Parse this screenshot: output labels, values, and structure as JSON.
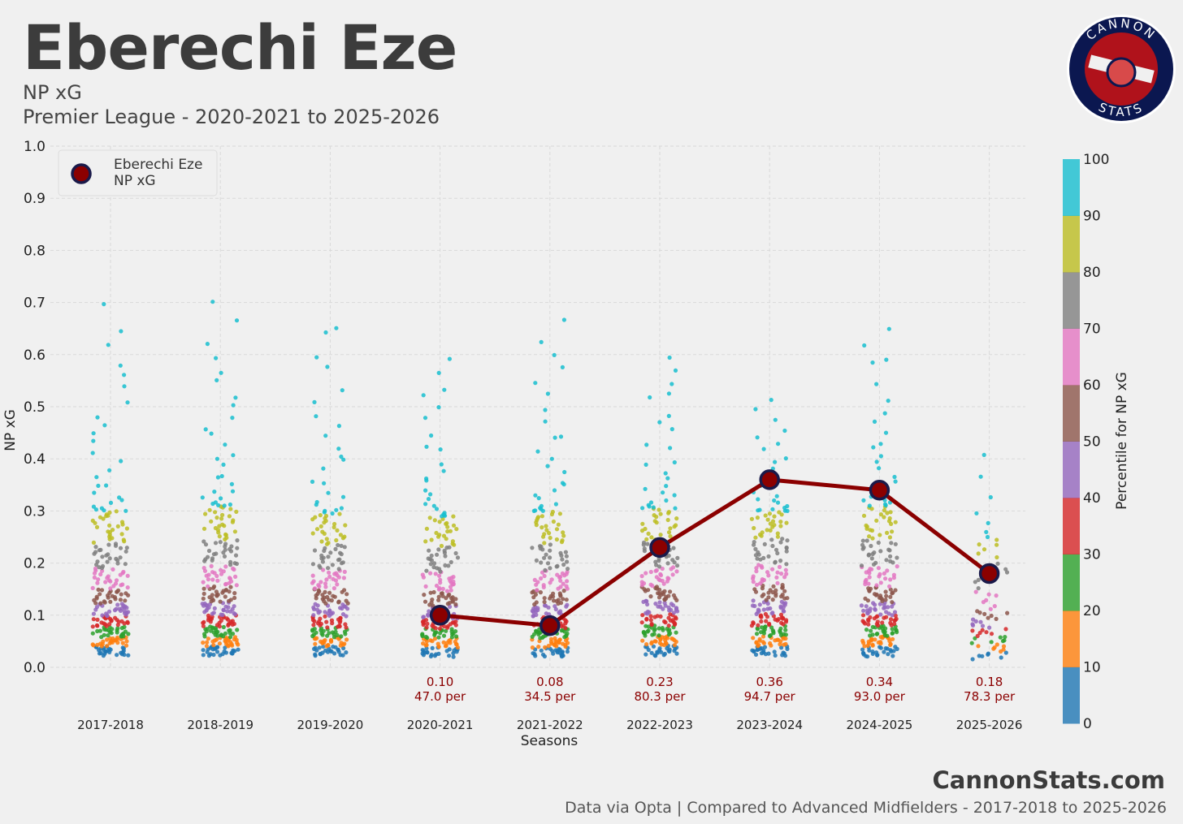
{
  "header": {
    "title": "Eberechi Eze",
    "metric": "NP xG",
    "competition": "Premier League - 2020-2021 to 2025-2026"
  },
  "logo": {
    "top_text": "CANNON",
    "bottom_text": "STATS"
  },
  "footer": {
    "brand": "CannonStats.com",
    "source": "Data via Opta | Compared to Advanced Midfielders - 2017-2018 to 2025-2026"
  },
  "chart_data": {
    "type": "scatter",
    "title": "Eberechi Eze",
    "xlabel": "Seasons",
    "ylabel": "NP xG",
    "ylim": [
      0,
      1.0
    ],
    "yticks": [
      "0.0",
      "0.1",
      "0.2",
      "0.3",
      "0.4",
      "0.5",
      "0.6",
      "0.7",
      "0.8",
      "0.9",
      "1.0"
    ],
    "categories": [
      "2017-2018",
      "2018-2019",
      "2019-2020",
      "2020-2021",
      "2021-2022",
      "2022-2023",
      "2023-2024",
      "2024-2025",
      "2025-2026"
    ],
    "legend": {
      "label_line1": "Eberechi Eze",
      "label_line2": "NP xG",
      "position": "top-left"
    },
    "player_series": {
      "name": "Eberechi Eze NP xG",
      "color": "#8b0000",
      "edge_color": "#1a1a4a",
      "points": [
        {
          "season": "2020-2021",
          "value": 0.1,
          "label": "0.10",
          "percentile_label": "47.0 per"
        },
        {
          "season": "2021-2022",
          "value": 0.08,
          "label": "0.08",
          "percentile_label": "34.5 per"
        },
        {
          "season": "2022-2023",
          "value": 0.23,
          "label": "0.23",
          "percentile_label": "80.3 per"
        },
        {
          "season": "2023-2024",
          "value": 0.36,
          "label": "0.36",
          "percentile_label": "94.7 per"
        },
        {
          "season": "2024-2025",
          "value": 0.34,
          "label": "0.34",
          "percentile_label": "93.0 per"
        },
        {
          "season": "2025-2026",
          "value": 0.18,
          "label": "0.18",
          "percentile_label": "78.3 per"
        }
      ]
    },
    "population_distribution": {
      "description": "Advanced midfielders per season, jittered strip plot coloured by percentile band",
      "quantiles_by_season": {
        "2017-2018": [
          0.0,
          0.022,
          0.04,
          0.058,
          0.078,
          0.098,
          0.122,
          0.15,
          0.19,
          0.238,
          0.3,
          0.7
        ],
        "2018-2019": [
          0.0,
          0.022,
          0.04,
          0.058,
          0.078,
          0.1,
          0.125,
          0.155,
          0.195,
          0.245,
          0.31,
          0.71
        ],
        "2019-2020": [
          0.0,
          0.022,
          0.04,
          0.058,
          0.076,
          0.098,
          0.122,
          0.15,
          0.188,
          0.235,
          0.295,
          0.68
        ],
        "2020-2021": [
          0.0,
          0.02,
          0.038,
          0.056,
          0.074,
          0.092,
          0.118,
          0.145,
          0.183,
          0.232,
          0.29,
          0.61
        ],
        "2021-2022": [
          0.0,
          0.02,
          0.038,
          0.056,
          0.075,
          0.096,
          0.12,
          0.148,
          0.185,
          0.236,
          0.3,
          0.67
        ],
        "2022-2023": [
          0.0,
          0.022,
          0.042,
          0.06,
          0.08,
          0.102,
          0.128,
          0.155,
          0.192,
          0.24,
          0.305,
          0.62
        ],
        "2023-2024": [
          0.0,
          0.022,
          0.04,
          0.06,
          0.08,
          0.102,
          0.128,
          0.158,
          0.198,
          0.248,
          0.3,
          0.525
        ],
        "2024-2025": [
          0.0,
          0.02,
          0.04,
          0.06,
          0.08,
          0.1,
          0.125,
          0.155,
          0.195,
          0.245,
          0.31,
          0.675
        ],
        "2025-2026": [
          0.0,
          0.015,
          0.03,
          0.045,
          0.06,
          0.075,
          0.092,
          0.11,
          0.15,
          0.2,
          0.25,
          0.43
        ]
      },
      "points_per_season": {
        "2017-2018": 260,
        "2018-2019": 270,
        "2019-2020": 245,
        "2020-2021": 240,
        "2021-2022": 255,
        "2022-2023": 250,
        "2023-2024": 245,
        "2024-2025": 250,
        "2025-2026": 70
      }
    },
    "colorbar": {
      "label": "Percentile for NP xG",
      "ticks": [
        "0",
        "10",
        "20",
        "30",
        "40",
        "50",
        "60",
        "70",
        "80",
        "90",
        "100"
      ],
      "colors": [
        "#1f77b4",
        "#ff7f0e",
        "#2ca02c",
        "#d62728",
        "#9467bd",
        "#8c564b",
        "#e377c2",
        "#7f7f7f",
        "#bcbd22",
        "#17becf"
      ]
    }
  }
}
